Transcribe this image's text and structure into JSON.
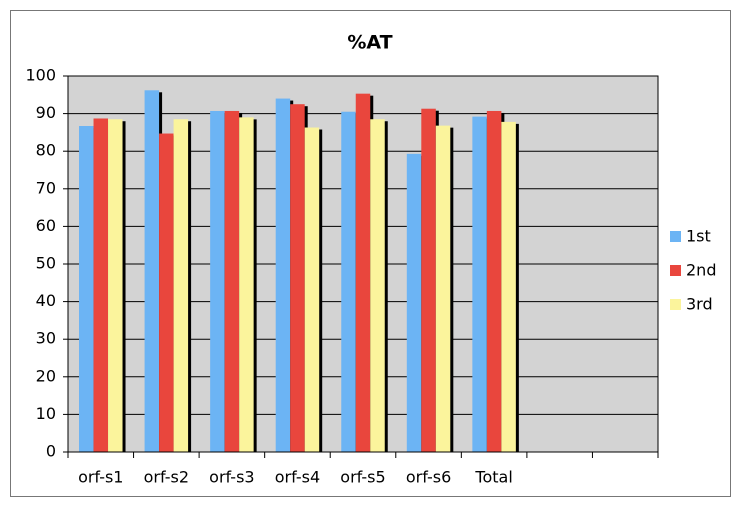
{
  "chart_data": {
    "type": "bar",
    "title": "%AT",
    "categories": [
      "orf-s1",
      "orf-s2",
      "orf-s3",
      "orf-s4",
      "orf-s5",
      "orf-s6",
      "Total",
      null,
      null
    ],
    "series": [
      {
        "name": "1st",
        "color": "#6cb4f4",
        "values": [
          86.7,
          96.2,
          90.7,
          94.0,
          90.5,
          79.3,
          89.2,
          null,
          null
        ]
      },
      {
        "name": "2nd",
        "color": "#e9463d",
        "values": [
          88.7,
          84.7,
          90.7,
          92.5,
          95.3,
          91.3,
          90.7,
          null,
          null
        ]
      },
      {
        "name": "3rd",
        "color": "#fbf49c",
        "values": [
          88.5,
          88.5,
          89.0,
          86.3,
          88.5,
          86.8,
          87.8,
          null,
          null
        ]
      }
    ],
    "ylim": [
      0,
      100
    ],
    "yticks": [
      0,
      10,
      20,
      30,
      40,
      50,
      60,
      70,
      80,
      90,
      100
    ],
    "grid": true,
    "legend": "right"
  }
}
